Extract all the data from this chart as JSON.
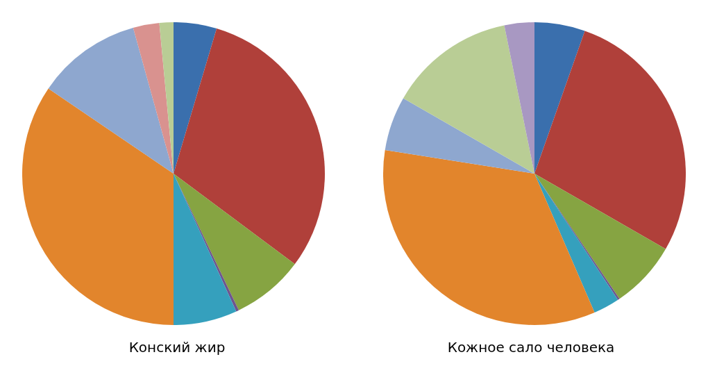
{
  "chart_data": [
    {
      "type": "pie",
      "title": "Конский жир",
      "categories": [
        null,
        null,
        null,
        null,
        null,
        null,
        null,
        null,
        null
      ],
      "values": [
        4.6,
        30.6,
        7.7,
        0.3,
        6.8,
        34.5,
        11.2,
        2.8,
        1.5
      ],
      "colors": [
        "#3a6fad",
        "#b0403a",
        "#86a442",
        "#6e558f",
        "#35a0bd",
        "#e2852c",
        "#8ea7cf",
        "#d9928f",
        "#b9cd95"
      ],
      "legend": false
    },
    {
      "type": "pie",
      "title": "Кожное сало человека",
      "categories": [
        null,
        null,
        null,
        null,
        null,
        null,
        null,
        null,
        null
      ],
      "values": [
        5.4,
        27.9,
        7.2,
        0.2,
        2.8,
        34.0,
        5.8,
        13.5,
        3.2
      ],
      "colors": [
        "#3a6fad",
        "#b0403a",
        "#86a442",
        "#6e558f",
        "#35a0bd",
        "#e2852c",
        "#8ea7cf",
        "#b9cd95",
        "#a898c2"
      ],
      "legend": false
    }
  ]
}
